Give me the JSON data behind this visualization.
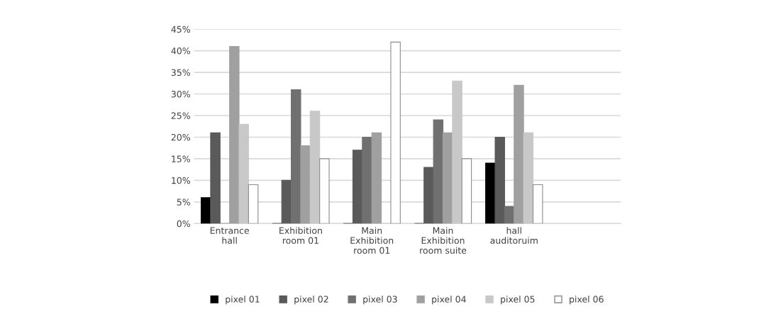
{
  "chart_data": {
    "type": "bar",
    "categories": [
      "Entrance\nhall",
      "Exhibition\nroom 01",
      "Main\nExhibition\nroom 01",
      "Main\nExhibition\nroom suite",
      "hall\nauditoruim",
      null
    ],
    "series": [
      {
        "name": "pixel 01",
        "color": "#000000",
        "values": [
          6,
          0,
          0,
          0,
          14,
          null
        ]
      },
      {
        "name": "pixel 02",
        "color": "#5a5a5a",
        "values": [
          21,
          10,
          17,
          13,
          20,
          null
        ]
      },
      {
        "name": "pixel 03",
        "color": "#707070",
        "values": [
          0,
          31,
          20,
          24,
          4,
          null
        ]
      },
      {
        "name": "pixel 04",
        "color": "#a0a0a0",
        "values": [
          41,
          18,
          21,
          21,
          32,
          null
        ]
      },
      {
        "name": "pixel 05",
        "color": "#c8c8c8",
        "values": [
          23,
          26,
          0,
          33,
          21,
          null
        ]
      },
      {
        "name": "pixel 06",
        "color": "#ffffff",
        "values": [
          9,
          15,
          42,
          15,
          9,
          null
        ]
      }
    ],
    "ylim": [
      0,
      45
    ],
    "yticks": [
      {
        "value": 0,
        "label": "0%"
      },
      {
        "value": 5,
        "label": "5%"
      },
      {
        "value": 10,
        "label": "10%"
      },
      {
        "value": 15,
        "label": "15%"
      },
      {
        "value": 20,
        "label": "20%"
      },
      {
        "value": 25,
        "label": "25%"
      },
      {
        "value": 30,
        "label": "30%"
      },
      {
        "value": 35,
        "label": "35%"
      },
      {
        "value": 40,
        "label": "40%"
      },
      {
        "value": 45,
        "label": "45%"
      }
    ],
    "grid": "y",
    "legend": "bottom"
  }
}
